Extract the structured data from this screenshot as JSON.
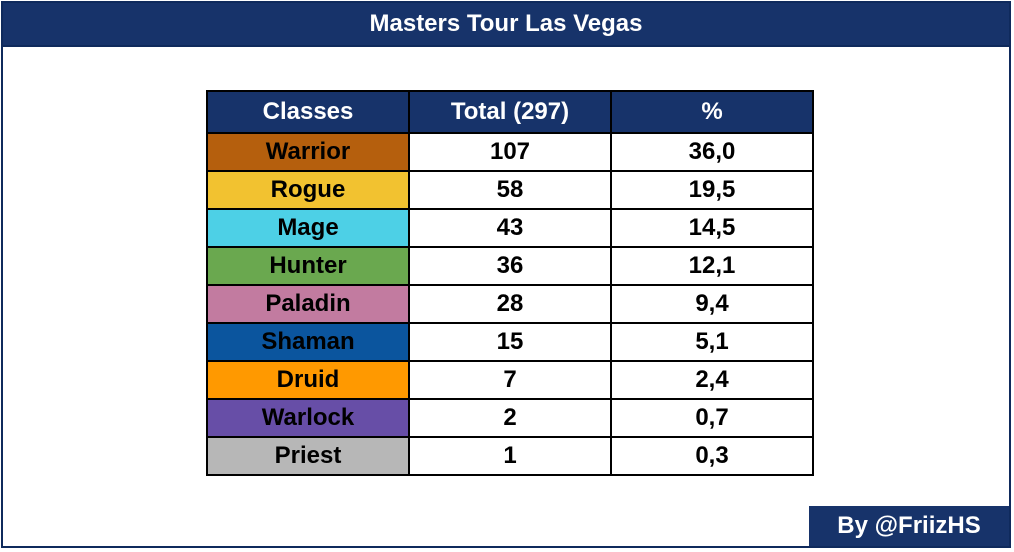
{
  "title": "Masters Tour Las Vegas",
  "table": {
    "headers": [
      "Classes",
      "Total (297)",
      "%"
    ],
    "rows": [
      {
        "class": "Warrior",
        "total": "107",
        "percent": "36,0",
        "color": "#b55f0d"
      },
      {
        "class": "Rogue",
        "total": "58",
        "percent": "19,5",
        "color": "#f2c230"
      },
      {
        "class": "Mage",
        "total": "43",
        "percent": "14,5",
        "color": "#4dd0e6"
      },
      {
        "class": "Hunter",
        "total": "36",
        "percent": "12,1",
        "color": "#6aa84f"
      },
      {
        "class": "Paladin",
        "total": "28",
        "percent": "9,4",
        "color": "#c27ba0"
      },
      {
        "class": "Shaman",
        "total": "15",
        "percent": "5,1",
        "color": "#0b559e"
      },
      {
        "class": "Druid",
        "total": "7",
        "percent": "2,4",
        "color": "#ff9900"
      },
      {
        "class": "Warlock",
        "total": "2",
        "percent": "0,7",
        "color": "#674ea7"
      },
      {
        "class": "Priest",
        "total": "1",
        "percent": "0,3",
        "color": "#b7b7b7"
      }
    ]
  },
  "credit": "By @FriizHS"
}
